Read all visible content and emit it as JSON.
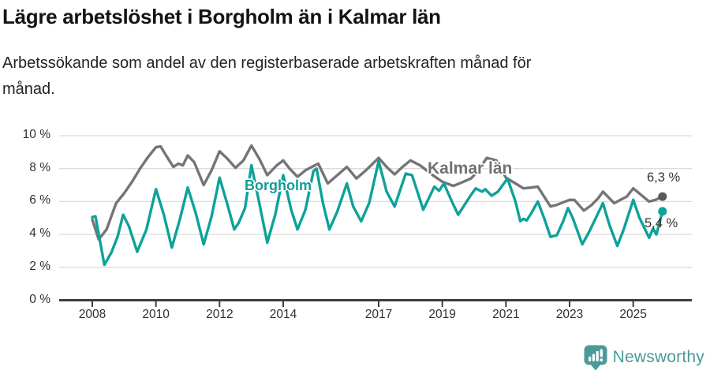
{
  "header": {
    "title": "Lägre arbetslöshet i Borgholm än i Kalmar län",
    "subtitle_lines": [
      "Arbetssökande som andel av den registerbaserade arbetskraften månad för",
      "månad."
    ]
  },
  "footer": {
    "brand": "Newsworthy",
    "brand_color": "#4a9b97",
    "logo_icon": "speech-bubble-bar-chart-exclamation"
  },
  "chart_data": {
    "type": "line",
    "title": "Lägre arbetslöshet i Borgholm än i Kalmar län",
    "subtitle": "Arbetssökande som andel av den registerbaserade arbetskraften månad för månad.",
    "xlabel": "",
    "ylabel": "",
    "x_unit": "year (monthly observations)",
    "y_unit": "percent",
    "xlim": [
      2007.6,
      2026.2
    ],
    "ylim": [
      0,
      10
    ],
    "grid": "horizontal",
    "legend_position": "inline-labels",
    "xticks": [
      2008,
      2010,
      2012,
      2014,
      2017,
      2019,
      2021,
      2023,
      2025
    ],
    "yticks": [
      {
        "value": 0,
        "label": "0 %"
      },
      {
        "value": 2,
        "label": "2 %"
      },
      {
        "value": 4,
        "label": "4 %"
      },
      {
        "value": 6,
        "label": "6 %"
      },
      {
        "value": 8,
        "label": "8 %"
      },
      {
        "value": 10,
        "label": "10 %"
      }
    ],
    "colors": {
      "grid": "#dcdcdc",
      "axis": "#3f3f3f",
      "tick_text": "#303030"
    },
    "series": [
      {
        "name": "Kalmar län",
        "color": "#74747a",
        "dot_color": "#58585c",
        "end_label": "6,3 %",
        "end_value": 6.3,
        "points": [
          [
            2008.0,
            4.9
          ],
          [
            2008.2,
            3.7
          ],
          [
            2008.45,
            4.3
          ],
          [
            2008.75,
            5.9
          ],
          [
            2009.0,
            6.5
          ],
          [
            2009.25,
            7.2
          ],
          [
            2009.5,
            8.0
          ],
          [
            2009.75,
            8.7
          ],
          [
            2010.0,
            9.3
          ],
          [
            2010.15,
            9.35
          ],
          [
            2010.35,
            8.7
          ],
          [
            2010.55,
            8.1
          ],
          [
            2010.7,
            8.3
          ],
          [
            2010.85,
            8.2
          ],
          [
            2011.0,
            8.8
          ],
          [
            2011.2,
            8.4
          ],
          [
            2011.5,
            7.0
          ],
          [
            2011.75,
            7.9
          ],
          [
            2012.0,
            9.05
          ],
          [
            2012.25,
            8.6
          ],
          [
            2012.5,
            8.05
          ],
          [
            2012.75,
            8.5
          ],
          [
            2013.0,
            9.4
          ],
          [
            2013.25,
            8.6
          ],
          [
            2013.5,
            7.6
          ],
          [
            2013.8,
            8.2
          ],
          [
            2014.0,
            8.5
          ],
          [
            2014.2,
            8.0
          ],
          [
            2014.45,
            7.5
          ],
          [
            2014.7,
            7.9
          ],
          [
            2015.1,
            8.3
          ],
          [
            2015.4,
            7.1
          ],
          [
            2015.7,
            7.6
          ],
          [
            2016.0,
            8.1
          ],
          [
            2016.3,
            7.4
          ],
          [
            2016.6,
            7.9
          ],
          [
            2017.0,
            8.65
          ],
          [
            2017.25,
            8.1
          ],
          [
            2017.5,
            7.65
          ],
          [
            2017.75,
            8.1
          ],
          [
            2018.0,
            8.5
          ],
          [
            2018.3,
            8.2
          ],
          [
            2018.7,
            7.6
          ],
          [
            2019.0,
            7.2
          ],
          [
            2019.35,
            6.95
          ],
          [
            2019.6,
            7.15
          ],
          [
            2019.9,
            7.4
          ],
          [
            2020.1,
            7.8
          ],
          [
            2020.4,
            8.65
          ],
          [
            2020.7,
            8.5
          ],
          [
            2021.0,
            7.45
          ],
          [
            2021.3,
            7.1
          ],
          [
            2021.55,
            6.8
          ],
          [
            2021.8,
            6.85
          ],
          [
            2022.0,
            6.9
          ],
          [
            2022.2,
            6.3
          ],
          [
            2022.4,
            5.7
          ],
          [
            2022.6,
            5.8
          ],
          [
            2022.8,
            5.95
          ],
          [
            2023.0,
            6.1
          ],
          [
            2023.15,
            6.1
          ],
          [
            2023.45,
            5.45
          ],
          [
            2023.7,
            5.8
          ],
          [
            2023.9,
            6.2
          ],
          [
            2024.05,
            6.6
          ],
          [
            2024.2,
            6.3
          ],
          [
            2024.4,
            5.9
          ],
          [
            2024.6,
            6.1
          ],
          [
            2024.8,
            6.3
          ],
          [
            2025.0,
            6.8
          ],
          [
            2025.25,
            6.4
          ],
          [
            2025.5,
            6.0
          ],
          [
            2025.7,
            6.1
          ],
          [
            2025.92,
            6.3
          ]
        ]
      },
      {
        "name": "Borgholm",
        "color": "#0ea299",
        "dot_color": "#0ea299",
        "end_label": "5,4 %",
        "end_value": 5.4,
        "points": [
          [
            2008.0,
            5.05
          ],
          [
            2008.1,
            5.1
          ],
          [
            2008.38,
            2.15
          ],
          [
            2008.6,
            2.9
          ],
          [
            2008.8,
            3.9
          ],
          [
            2008.97,
            5.2
          ],
          [
            2009.15,
            4.5
          ],
          [
            2009.41,
            2.95
          ],
          [
            2009.7,
            4.3
          ],
          [
            2010.0,
            6.75
          ],
          [
            2010.25,
            5.2
          ],
          [
            2010.5,
            3.2
          ],
          [
            2010.75,
            4.9
          ],
          [
            2011.0,
            6.85
          ],
          [
            2011.25,
            5.3
          ],
          [
            2011.5,
            3.4
          ],
          [
            2011.75,
            5.1
          ],
          [
            2012.0,
            7.45
          ],
          [
            2012.25,
            5.8
          ],
          [
            2012.46,
            4.3
          ],
          [
            2012.6,
            4.7
          ],
          [
            2012.8,
            5.6
          ],
          [
            2013.0,
            8.2
          ],
          [
            2013.25,
            5.9
          ],
          [
            2013.5,
            3.5
          ],
          [
            2013.75,
            5.2
          ],
          [
            2014.0,
            7.6
          ],
          [
            2014.25,
            5.5
          ],
          [
            2014.45,
            4.3
          ],
          [
            2014.7,
            5.5
          ],
          [
            2014.95,
            7.85
          ],
          [
            2015.05,
            8.0
          ],
          [
            2015.25,
            5.9
          ],
          [
            2015.45,
            4.3
          ],
          [
            2015.7,
            5.4
          ],
          [
            2016.0,
            7.1
          ],
          [
            2016.2,
            5.7
          ],
          [
            2016.45,
            4.8
          ],
          [
            2016.7,
            5.9
          ],
          [
            2017.0,
            8.45
          ],
          [
            2017.25,
            6.6
          ],
          [
            2017.5,
            5.7
          ],
          [
            2017.85,
            7.7
          ],
          [
            2018.05,
            7.6
          ],
          [
            2018.4,
            5.5
          ],
          [
            2018.75,
            6.9
          ],
          [
            2018.9,
            6.65
          ],
          [
            2019.05,
            7.1
          ],
          [
            2019.3,
            6.0
          ],
          [
            2019.5,
            5.2
          ],
          [
            2019.9,
            6.4
          ],
          [
            2020.05,
            6.8
          ],
          [
            2020.25,
            6.6
          ],
          [
            2020.35,
            6.75
          ],
          [
            2020.55,
            6.35
          ],
          [
            2020.75,
            6.6
          ],
          [
            2021.05,
            7.4
          ],
          [
            2021.3,
            6.0
          ],
          [
            2021.45,
            4.8
          ],
          [
            2021.55,
            4.95
          ],
          [
            2021.65,
            4.85
          ],
          [
            2021.8,
            5.3
          ],
          [
            2022.0,
            6.0
          ],
          [
            2022.2,
            5.0
          ],
          [
            2022.4,
            3.85
          ],
          [
            2022.6,
            3.95
          ],
          [
            2022.8,
            4.8
          ],
          [
            2022.95,
            5.6
          ],
          [
            2023.1,
            5.0
          ],
          [
            2023.4,
            3.4
          ],
          [
            2023.6,
            4.1
          ],
          [
            2023.8,
            4.9
          ],
          [
            2024.05,
            5.9
          ],
          [
            2024.25,
            4.6
          ],
          [
            2024.5,
            3.3
          ],
          [
            2024.7,
            4.3
          ],
          [
            2025.0,
            6.1
          ],
          [
            2025.2,
            5.0
          ],
          [
            2025.5,
            3.8
          ],
          [
            2025.62,
            4.35
          ],
          [
            2025.73,
            4.0
          ],
          [
            2025.92,
            5.4
          ]
        ]
      }
    ]
  }
}
